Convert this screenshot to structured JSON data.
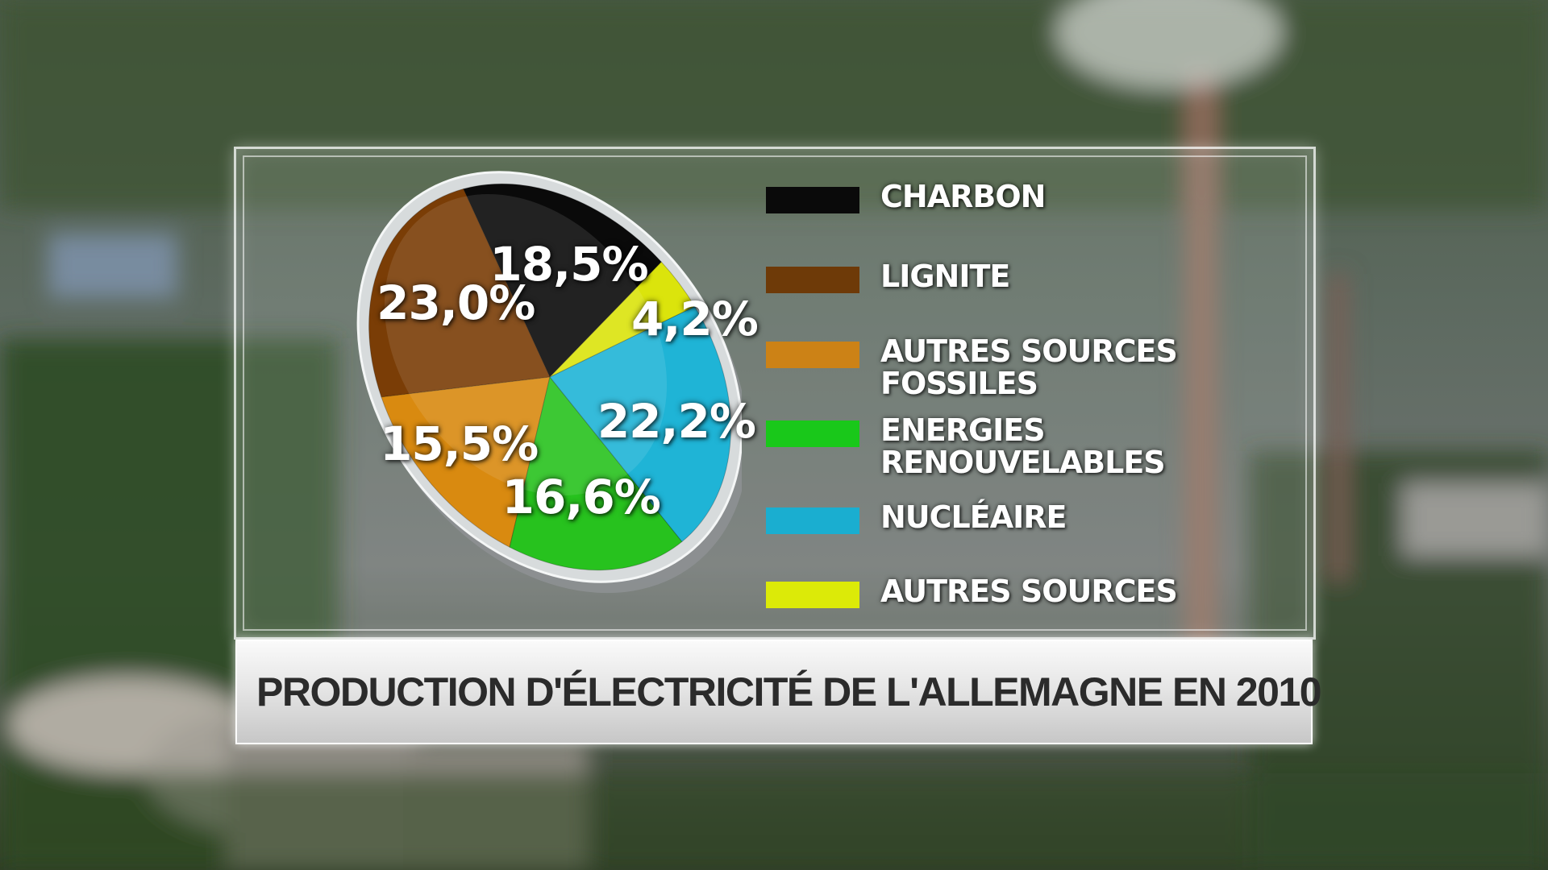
{
  "chart_data": {
    "type": "pie",
    "title": "PRODUCTION D'ÉLECTRICITÉ DE L'ALLEMAGNE EN 2010",
    "unit": "%",
    "slices": [
      {
        "name": "CHARBON",
        "value": 18.5,
        "label": "18,5%",
        "color": "#0a0a0a"
      },
      {
        "name": "LIGNITE",
        "value": 23.0,
        "label": "23,0%",
        "color": "#7a3d06"
      },
      {
        "name": "AUTRES SOURCES FOSSILES",
        "value": 15.5,
        "label": "15,5%",
        "color": "#d98a10"
      },
      {
        "name": "ENERGIES RENOUVELABLES",
        "value": 16.6,
        "label": "16,6%",
        "color": "#27c21e"
      },
      {
        "name": "NUCLÉAIRE",
        "value": 22.2,
        "label": "22,2%",
        "color": "#1fb4d6"
      },
      {
        "name": "AUTRES SOURCES",
        "value": 4.2,
        "label": "4,2%",
        "color": "#dbe40c"
      }
    ],
    "legend": [
      {
        "lines": [
          "CHARBON"
        ],
        "color": "#0a0a0a"
      },
      {
        "lines": [
          "LIGNITE"
        ],
        "color": "#6e3a08"
      },
      {
        "lines": [
          "AUTRES SOURCES",
          "FOSSILES"
        ],
        "color": "#cc8216"
      },
      {
        "lines": [
          "ENERGIES",
          "RENOUVELABLES"
        ],
        "color": "#19c81a"
      },
      {
        "lines": [
          "NUCLÉAIRE"
        ],
        "color": "#1aaed0"
      },
      {
        "lines": [
          "AUTRES SOURCES"
        ],
        "color": "#dcea08"
      }
    ],
    "legend_placement": "right"
  }
}
